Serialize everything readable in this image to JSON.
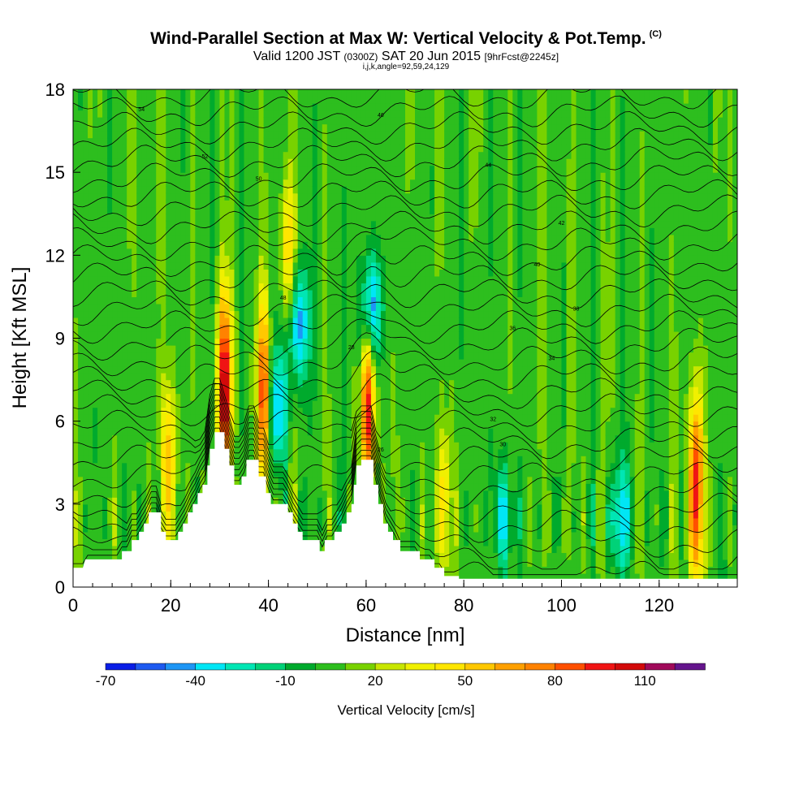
{
  "title": {
    "main": "Wind-Parallel Section at Max W: Vertical Velocity & Pot.Temp.",
    "mark": "(C)"
  },
  "subtitle": {
    "a": "Valid 1200 JST",
    "b": "(0300Z)",
    "c": "SAT 20 Jun 2015",
    "d": "[9hrFcst@2245z]",
    "line2": "i,j,k,angle=92,59,24,129"
  },
  "chart_data": {
    "type": "heatmap",
    "xlabel": "Distance [nm]",
    "ylabel": "Height [Kft MSL]",
    "xlim": [
      0,
      136
    ],
    "ylim": [
      0,
      18
    ],
    "xticks": [
      "0",
      "20",
      "40",
      "60",
      "80",
      "100",
      "120"
    ],
    "yticks": [
      "0",
      "3",
      "6",
      "9",
      "12",
      "15",
      "18"
    ],
    "colorbar": {
      "label": "Vertical Velocity [cm/s]",
      "ticks": [
        "-70",
        "-40",
        "-10",
        "20",
        "50",
        "80",
        "110"
      ],
      "levels_cm_s": [
        -70,
        -60,
        -50,
        -40,
        -30,
        -20,
        -10,
        0,
        10,
        20,
        30,
        40,
        50,
        60,
        70,
        80,
        90,
        100,
        110,
        120
      ],
      "colors": [
        "#0a1ee6",
        "#1e5af0",
        "#1e96f5",
        "#00e6f5",
        "#00e6b4",
        "#00d278",
        "#00aa2d",
        "#2dbe1e",
        "#78d200",
        "#c8e600",
        "#f0f000",
        "#ffe600",
        "#ffc800",
        "#ffa000",
        "#ff8200",
        "#ff5000",
        "#f01414",
        "#d20a0a",
        "#a00a5a",
        "#64148c"
      ]
    },
    "terrain_kft": [
      [
        0,
        0.7
      ],
      [
        2,
        0.7
      ],
      [
        2.5,
        1.0
      ],
      [
        10,
        1.0
      ],
      [
        10,
        1.3
      ],
      [
        12,
        1.3
      ],
      [
        12,
        1.7
      ],
      [
        13.5,
        1.7
      ],
      [
        13.5,
        2.0
      ],
      [
        14.5,
        2.0
      ],
      [
        14.5,
        2.3
      ],
      [
        15.5,
        2.3
      ],
      [
        15.5,
        2.7
      ],
      [
        18,
        2.7
      ],
      [
        18,
        2.0
      ],
      [
        19,
        2.0
      ],
      [
        19,
        1.7
      ],
      [
        21.5,
        1.7
      ],
      [
        21.5,
        2.0
      ],
      [
        22.5,
        2.0
      ],
      [
        22.5,
        2.3
      ],
      [
        23.5,
        2.3
      ],
      [
        23.5,
        2.7
      ],
      [
        24.5,
        2.7
      ],
      [
        24.5,
        3.0
      ],
      [
        25.5,
        3.0
      ],
      [
        25.5,
        3.4
      ],
      [
        26.5,
        3.4
      ],
      [
        26.5,
        3.7
      ],
      [
        27.5,
        3.7
      ],
      [
        27.5,
        4.4
      ],
      [
        28,
        4.4
      ],
      [
        28,
        5.0
      ],
      [
        29,
        5.0
      ],
      [
        29,
        5.6
      ],
      [
        31,
        5.6
      ],
      [
        31,
        5.0
      ],
      [
        32,
        5.0
      ],
      [
        32,
        4.4
      ],
      [
        33,
        4.4
      ],
      [
        33,
        3.7
      ],
      [
        34.5,
        3.7
      ],
      [
        34.5,
        4.0
      ],
      [
        35.5,
        4.0
      ],
      [
        35.5,
        4.6
      ],
      [
        38,
        4.6
      ],
      [
        38,
        4.0
      ],
      [
        39.5,
        4.0
      ],
      [
        39.5,
        3.4
      ],
      [
        40.5,
        3.4
      ],
      [
        40.5,
        3.0
      ],
      [
        44,
        3.0
      ],
      [
        44,
        2.7
      ],
      [
        45,
        2.7
      ],
      [
        45,
        2.3
      ],
      [
        46,
        2.3
      ],
      [
        46,
        2.0
      ],
      [
        47,
        2.0
      ],
      [
        47,
        1.7
      ],
      [
        50.5,
        1.7
      ],
      [
        50.5,
        1.3
      ],
      [
        51.5,
        1.3
      ],
      [
        51.5,
        1.7
      ],
      [
        53.5,
        1.7
      ],
      [
        53.5,
        2.0
      ],
      [
        55,
        2.0
      ],
      [
        55,
        2.3
      ],
      [
        56,
        2.3
      ],
      [
        56,
        2.7
      ],
      [
        57,
        2.7
      ],
      [
        57,
        3.0
      ],
      [
        57.5,
        3.0
      ],
      [
        57.5,
        3.7
      ],
      [
        58,
        3.7
      ],
      [
        58,
        4.4
      ],
      [
        59,
        4.4
      ],
      [
        59,
        4.6
      ],
      [
        61.5,
        4.6
      ],
      [
        61.5,
        3.7
      ],
      [
        62.5,
        3.7
      ],
      [
        62.5,
        3.0
      ],
      [
        63.5,
        3.0
      ],
      [
        63.5,
        2.3
      ],
      [
        64.5,
        2.3
      ],
      [
        64.5,
        2.0
      ],
      [
        65.5,
        2.0
      ],
      [
        65.5,
        1.7
      ],
      [
        67,
        1.7
      ],
      [
        67,
        1.3
      ],
      [
        71,
        1.3
      ],
      [
        71,
        1.0
      ],
      [
        74,
        1.0
      ],
      [
        74,
        0.7
      ],
      [
        76,
        0.7
      ],
      [
        76,
        0.4
      ],
      [
        79,
        0.4
      ],
      [
        79,
        0.3
      ],
      [
        136,
        0.3
      ]
    ],
    "updrafts_cm_s": [
      {
        "x": 31,
        "y": 7.2,
        "peak": 105
      },
      {
        "x": 39,
        "y": 7.0,
        "peak": 80
      },
      {
        "x": 60.5,
        "y": 6.5,
        "peak": 90
      },
      {
        "x": 19.5,
        "y": 4.5,
        "peak": 55
      },
      {
        "x": 127.5,
        "y": 3.5,
        "peak": 100
      },
      {
        "x": 44,
        "y": 12.0,
        "peak": 45
      },
      {
        "x": 76,
        "y": 3.0,
        "peak": 45
      }
    ],
    "downdrafts_cm_s": [
      {
        "x": 61,
        "y": 10.0,
        "peak": -60
      },
      {
        "x": 46,
        "y": 9.5,
        "peak": -55
      },
      {
        "x": 42,
        "y": 6.5,
        "peak": -45
      },
      {
        "x": 112,
        "y": 2.5,
        "peak": -40
      },
      {
        "x": 88,
        "y": 2.5,
        "peak": -35
      }
    ],
    "pot_temp_contours": {
      "units": "C",
      "labels": [
        "54",
        "52",
        "50",
        "48",
        "46",
        "44",
        "42",
        "40",
        "38",
        "36",
        "34",
        "32",
        "30",
        "28",
        "26"
      ]
    }
  }
}
